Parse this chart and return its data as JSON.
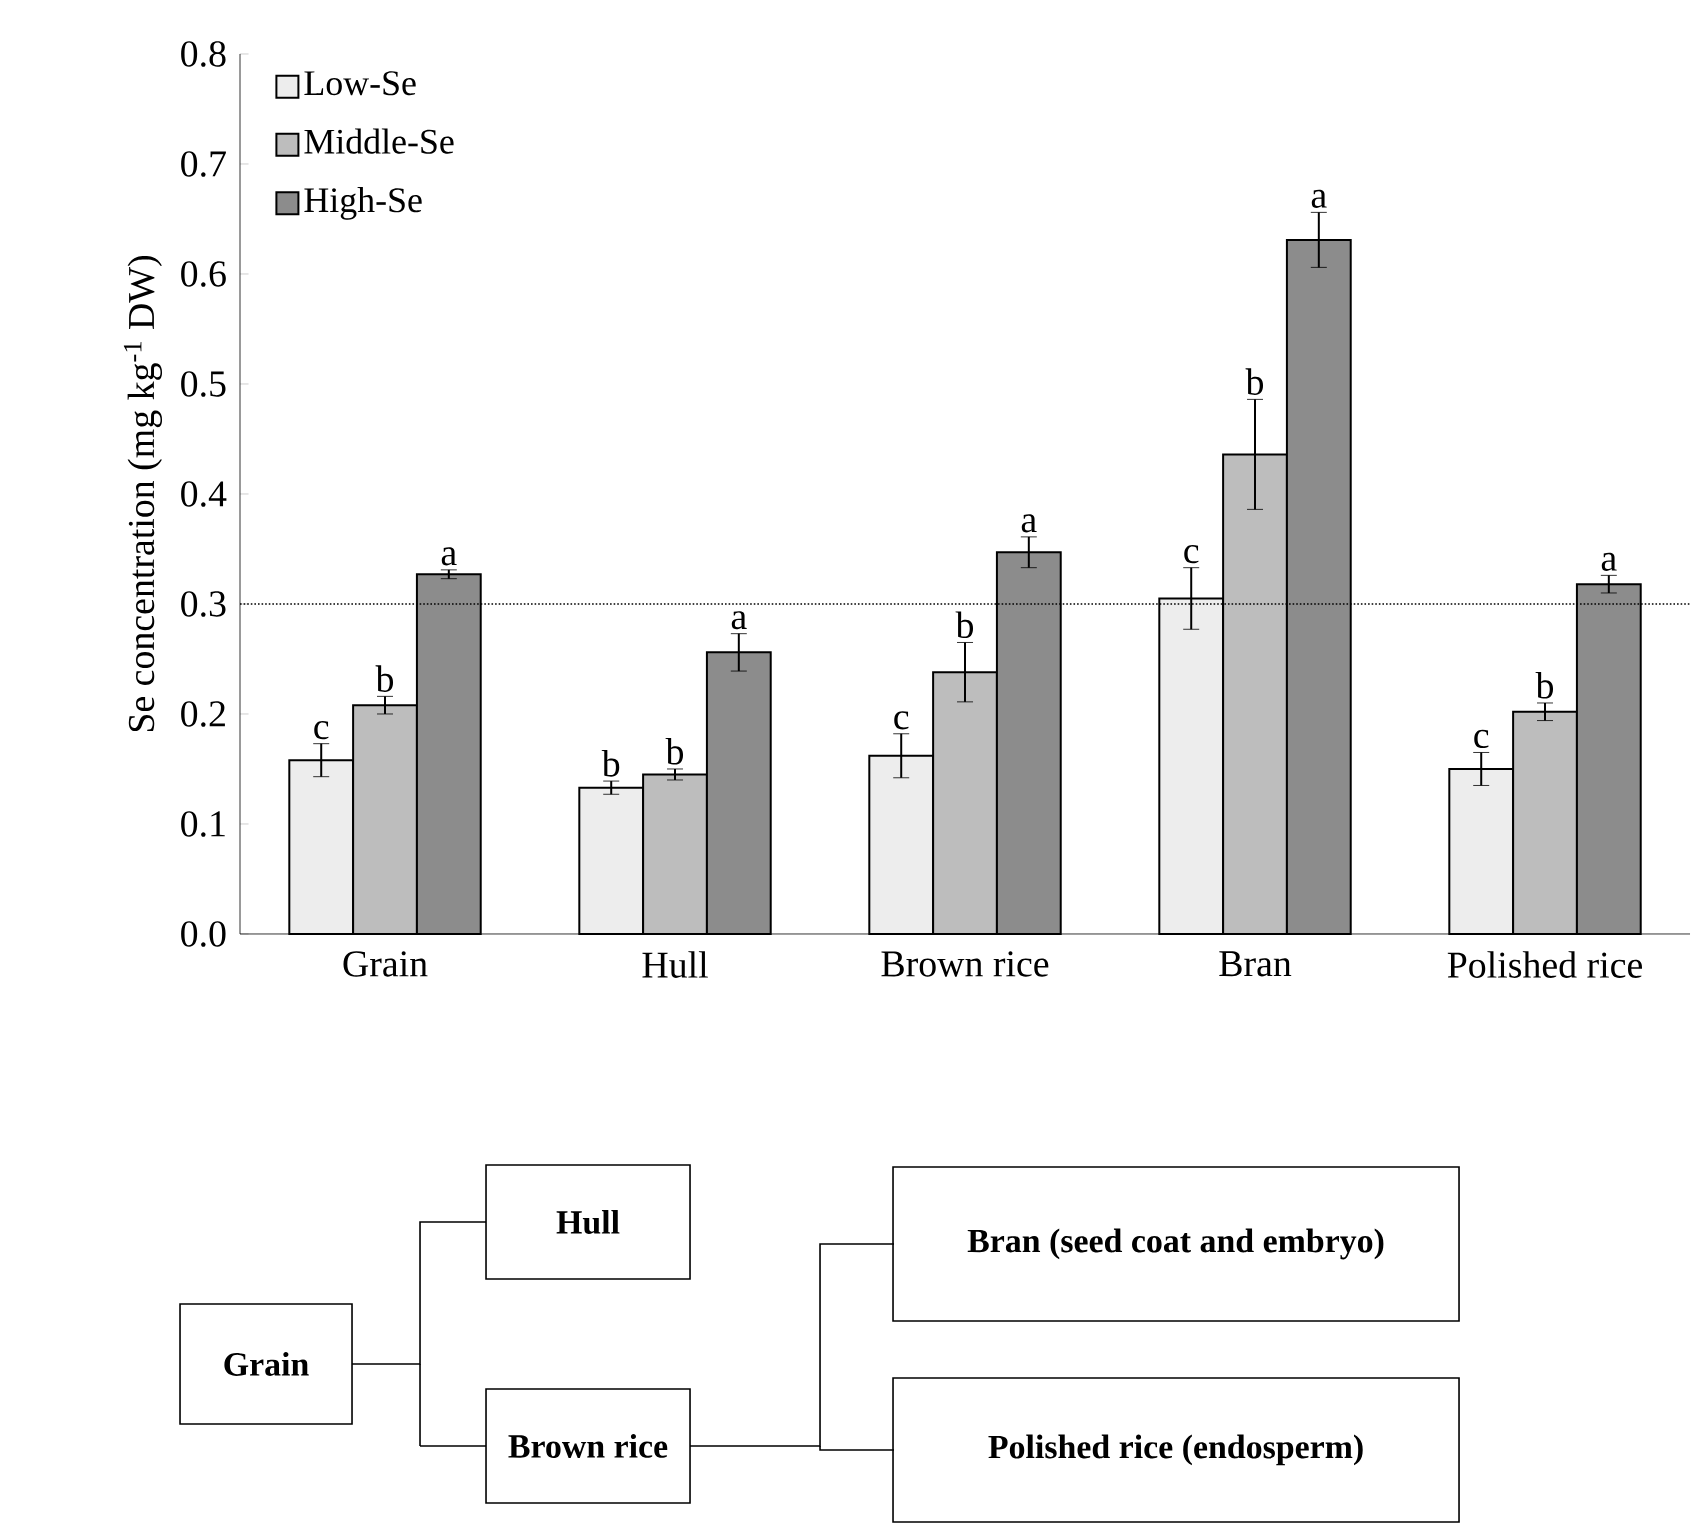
{
  "chart_data": [
    {
      "type": "bar",
      "ylabel": "Se concentration (mg kg$^{-1}$ DW)",
      "categories": [
        "Grain",
        "Hull",
        "Brown rice",
        "Bran",
        "Polished rice"
      ],
      "series": [
        {
          "name": "Low-Se",
          "color": "#ededed",
          "values": [
            0.158,
            0.133,
            0.162,
            0.305,
            0.15
          ],
          "errors": [
            0.015,
            0.006,
            0.02,
            0.028,
            0.015
          ]
        },
        {
          "name": "Middle-Se",
          "color": "#bdbdbd",
          "values": [
            0.208,
            0.145,
            0.238,
            0.436,
            0.202
          ],
          "errors": [
            0.008,
            0.005,
            0.027,
            0.05,
            0.008
          ]
        },
        {
          "name": "High-Se",
          "color": "#8c8c8c",
          "values": [
            0.327,
            0.256,
            0.347,
            0.631,
            0.318
          ],
          "errors": [
            0.004,
            0.017,
            0.014,
            0.025,
            0.008
          ]
        }
      ],
      "ylim": [
        0,
        0.8
      ],
      "yticks": [
        {
          "value": 0,
          "label": "0.0"
        },
        0.1,
        0.2,
        0.3,
        0.4,
        0.5,
        0.6,
        0.7,
        0.8
      ],
      "ref_lines": [
        {
          "axis": "y",
          "value": 0.3,
          "line_style": "dotted"
        }
      ],
      "legend": "top left",
      "annotations": [
        "c",
        "b",
        "a",
        "b",
        "b",
        "a",
        "c",
        "b",
        "a",
        "c",
        "b",
        "a",
        "c",
        "b",
        "a"
      ]
    },
    {
      "type": "other",
      "annotations": [
        "Grain",
        "Hull",
        "Brown rice",
        "Bran (seed coat and embryo)",
        "Polished rice (endosperm)"
      ]
    }
  ]
}
